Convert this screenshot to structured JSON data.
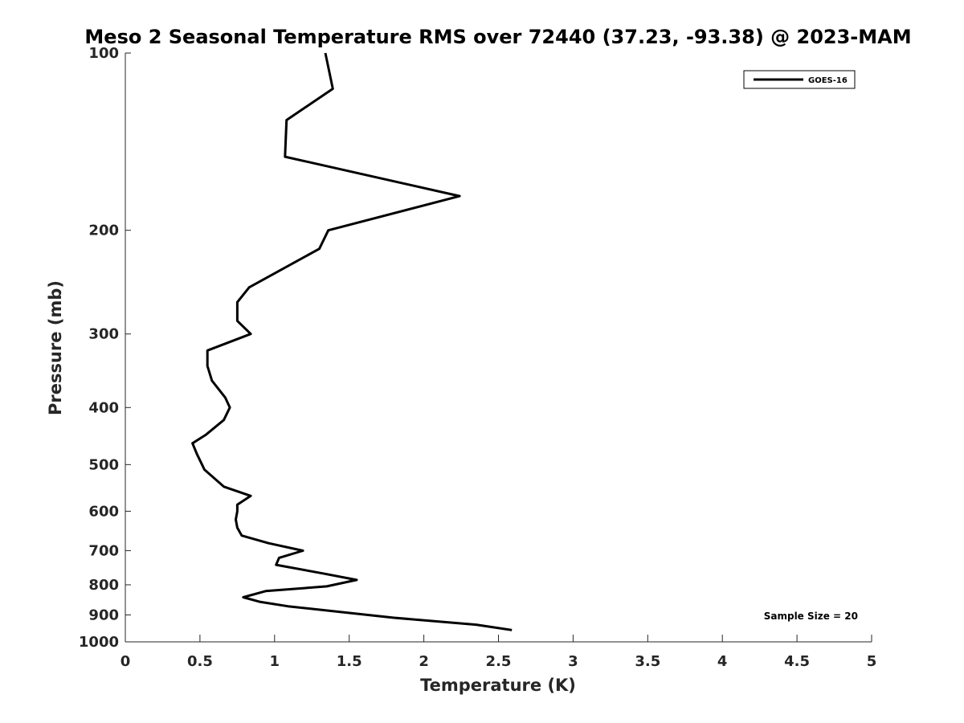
{
  "chart_data": {
    "type": "line",
    "title": "Meso 2 Seasonal Temperature RMS over 72440 (37.23, -93.38) @ 2023-MAM",
    "xlabel": "Temperature (K)",
    "ylabel": "Pressure (mb)",
    "xlim": [
      0,
      5
    ],
    "ylim": [
      100,
      1000
    ],
    "y_scale": "log",
    "y_reversed": true,
    "grid": false,
    "legend_position": "top-right",
    "x_ticks": [
      "0",
      "0.5",
      "1",
      "1.5",
      "2",
      "2.5",
      "3",
      "3.5",
      "4",
      "4.5",
      "5"
    ],
    "y_ticks": [
      "100",
      "200",
      "300",
      "400",
      "500",
      "600",
      "700",
      "800",
      "900",
      "1000"
    ],
    "series": [
      {
        "name": "GOES-16",
        "color": "#000000",
        "x": [
          1.34,
          1.39,
          1.08,
          1.07,
          2.24,
          1.36,
          1.3,
          0.83,
          0.75,
          0.75,
          0.84,
          0.55,
          0.55,
          0.58,
          0.67,
          0.7,
          0.66,
          0.54,
          0.45,
          0.48,
          0.53,
          0.66,
          0.84,
          0.75,
          0.75,
          0.74,
          0.75,
          0.78,
          0.96,
          1.19,
          1.03,
          1.01,
          1.32,
          1.55,
          1.35,
          0.94,
          0.79,
          0.9,
          1.09,
          1.8,
          2.35,
          2.59
        ],
        "y": [
          100,
          115,
          130,
          150,
          175,
          200,
          215,
          250,
          265,
          285,
          300,
          320,
          340,
          360,
          385,
          400,
          420,
          445,
          460,
          480,
          510,
          545,
          565,
          585,
          600,
          620,
          640,
          660,
          680,
          700,
          720,
          740,
          765,
          785,
          805,
          820,
          840,
          855,
          870,
          910,
          935,
          955
        ]
      }
    ],
    "annotation": "Sample Size = 20"
  }
}
